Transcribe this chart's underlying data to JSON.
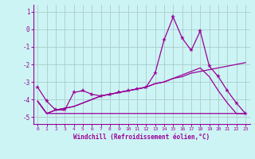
{
  "xlabel": "Windchill (Refroidissement éolien,°C)",
  "bg_color": "#cdf4f4",
  "grid_color": "#aacccc",
  "line_color": "#990099",
  "x_values": [
    0,
    1,
    2,
    3,
    4,
    5,
    6,
    7,
    8,
    9,
    10,
    11,
    12,
    13,
    14,
    15,
    16,
    17,
    18,
    19,
    20,
    21,
    22,
    23
  ],
  "line1_y": [
    -3.3,
    -4.1,
    -4.6,
    -4.6,
    -3.6,
    -3.5,
    -3.7,
    -3.8,
    -3.7,
    -3.6,
    -3.5,
    -3.4,
    -3.3,
    -2.5,
    -0.6,
    0.7,
    -0.5,
    -1.2,
    -0.1,
    -2.1,
    -2.7,
    -3.5,
    -4.2,
    -4.8
  ],
  "line2_y": [
    -4.1,
    -4.8,
    -4.8,
    -4.8,
    -4.8,
    -4.8,
    -4.8,
    -4.8,
    -4.8,
    -4.8,
    -4.8,
    -4.8,
    -4.8,
    -4.8,
    -4.8,
    -4.8,
    -4.8,
    -4.8,
    -4.8,
    -4.8,
    -4.8,
    -4.8,
    -4.8,
    -4.8
  ],
  "line3_y": [
    -4.1,
    -4.8,
    -4.6,
    -4.5,
    -4.4,
    -4.2,
    -4.0,
    -3.8,
    -3.7,
    -3.6,
    -3.5,
    -3.4,
    -3.3,
    -3.1,
    -3.0,
    -2.8,
    -2.7,
    -2.5,
    -2.4,
    -2.3,
    -2.2,
    -2.1,
    -2.0,
    -1.9
  ],
  "line4_y": [
    -4.1,
    -4.8,
    -4.6,
    -4.5,
    -4.4,
    -4.2,
    -4.0,
    -3.8,
    -3.7,
    -3.6,
    -3.5,
    -3.4,
    -3.3,
    -3.1,
    -3.0,
    -2.8,
    -2.6,
    -2.4,
    -2.2,
    -2.7,
    -3.5,
    -4.2,
    -4.8,
    -4.8
  ],
  "ylim": [
    -5.4,
    1.4
  ],
  "xlim": [
    -0.5,
    23.5
  ],
  "yticks": [
    1,
    0,
    -1,
    -2,
    -3,
    -4,
    -5
  ]
}
